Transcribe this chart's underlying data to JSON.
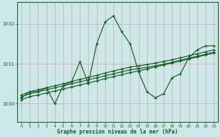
{
  "xlabel": "Graphe pression niveau de la mer (hPa)",
  "bg_color": "#cce8e8",
  "line_color": "#1a5c28",
  "grid_color": "#d4a0a8",
  "ylim": [
    1029.55,
    1032.55
  ],
  "xlim": [
    -0.5,
    23.5
  ],
  "yticks": [
    1030,
    1031,
    1032
  ],
  "xticks": [
    0,
    1,
    2,
    3,
    4,
    5,
    6,
    7,
    8,
    9,
    10,
    11,
    12,
    13,
    14,
    15,
    16,
    17,
    18,
    19,
    20,
    21,
    22,
    23
  ],
  "line1_x": [
    0,
    1,
    2,
    3,
    4,
    5,
    6,
    7,
    8,
    9,
    10,
    11,
    12,
    13,
    14,
    15,
    16,
    17,
    18,
    19,
    20,
    21,
    22,
    23
  ],
  "line1": [
    1030.15,
    1030.3,
    1030.3,
    1030.4,
    1030.0,
    1030.45,
    1030.55,
    1031.05,
    1030.5,
    1031.5,
    1032.05,
    1032.2,
    1031.8,
    1031.5,
    1030.8,
    1030.3,
    1030.15,
    1030.25,
    1030.65,
    1030.75,
    1031.15,
    1031.35,
    1031.45,
    1031.45
  ],
  "line2_x": [
    0,
    1,
    2,
    3,
    4,
    5,
    6,
    7,
    8,
    9,
    10,
    11,
    12,
    13,
    14,
    15,
    16,
    17,
    18,
    19,
    20,
    21,
    22,
    23
  ],
  "line2": [
    1030.1,
    1030.18,
    1030.22,
    1030.27,
    1030.32,
    1030.37,
    1030.42,
    1030.47,
    1030.52,
    1030.57,
    1030.63,
    1030.68,
    1030.73,
    1030.78,
    1030.82,
    1030.87,
    1030.92,
    1030.97,
    1031.02,
    1031.07,
    1031.12,
    1031.17,
    1031.22,
    1031.27
  ],
  "line3_x": [
    0,
    1,
    2,
    3,
    4,
    5,
    6,
    7,
    8,
    9,
    10,
    11,
    12,
    13,
    14,
    15,
    16,
    17,
    18,
    19,
    20,
    21,
    22,
    23
  ],
  "line3": [
    1030.17,
    1030.25,
    1030.3,
    1030.35,
    1030.4,
    1030.45,
    1030.5,
    1030.55,
    1030.6,
    1030.65,
    1030.7,
    1030.75,
    1030.8,
    1030.85,
    1030.88,
    1030.91,
    1030.95,
    1030.99,
    1031.04,
    1031.09,
    1031.14,
    1031.19,
    1031.24,
    1031.29
  ],
  "line4_x": [
    0,
    1,
    2,
    3,
    4,
    5,
    6,
    7,
    8,
    9,
    10,
    11,
    12,
    13,
    14,
    15,
    16,
    17,
    18,
    19,
    20,
    21,
    22,
    23
  ],
  "line4": [
    1030.22,
    1030.3,
    1030.35,
    1030.4,
    1030.45,
    1030.5,
    1030.56,
    1030.61,
    1030.66,
    1030.71,
    1030.77,
    1030.82,
    1030.87,
    1030.92,
    1030.95,
    1030.98,
    1031.02,
    1031.06,
    1031.1,
    1031.15,
    1031.2,
    1031.25,
    1031.3,
    1031.35
  ]
}
